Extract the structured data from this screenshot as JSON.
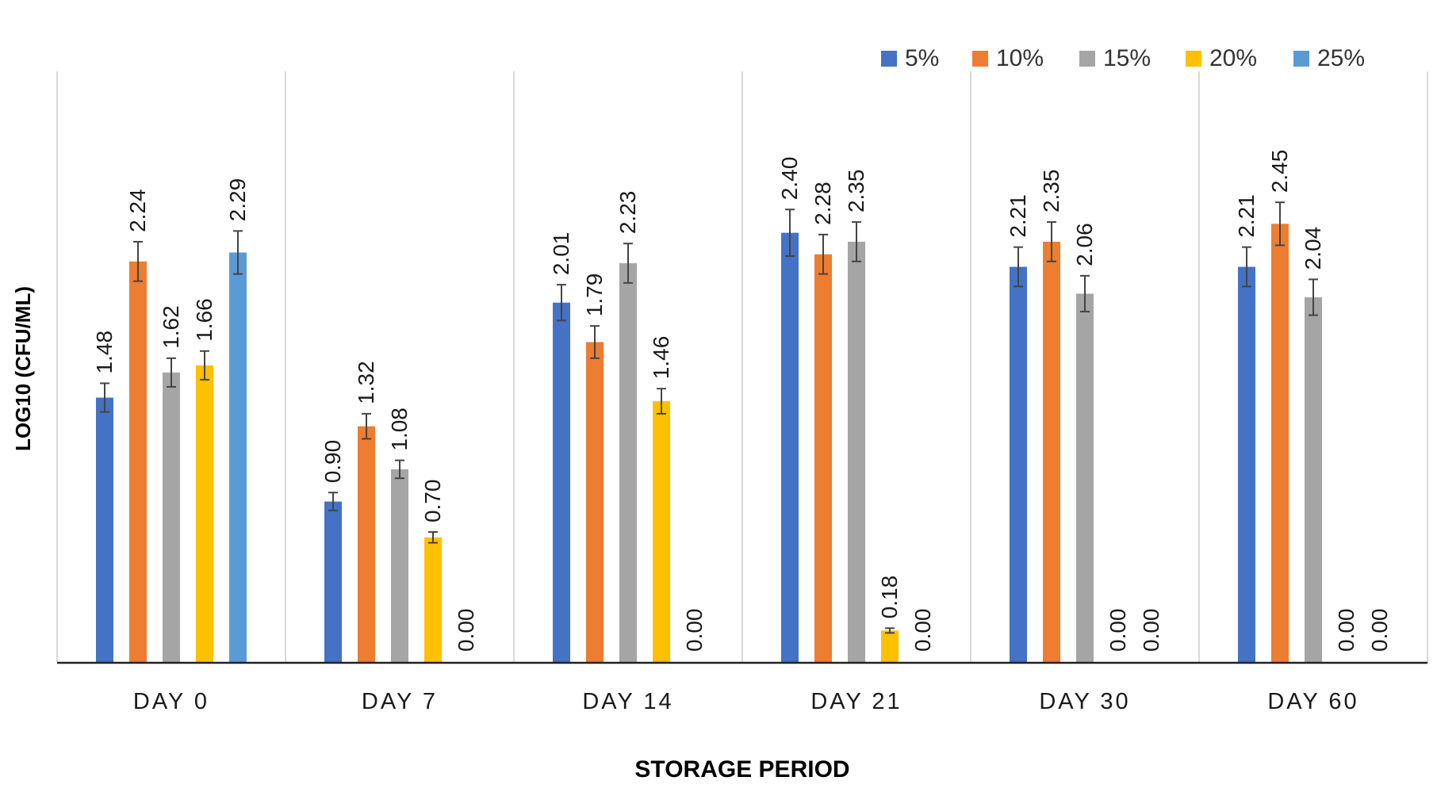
{
  "chart_data": {
    "type": "bar",
    "title": "",
    "xlabel": "STORAGE PERIOD",
    "ylabel": "LOG10 (CFU/ML)",
    "categories": [
      "DAY 0",
      "DAY 7",
      "DAY 14",
      "DAY 21",
      "DAY 30",
      "DAY 60"
    ],
    "series": [
      {
        "name": "5%",
        "color": "#4472C4",
        "values": [
          1.48,
          0.9,
          2.01,
          2.4,
          2.21,
          2.21
        ],
        "errors": [
          0.08,
          0.05,
          0.1,
          0.13,
          0.11,
          0.11
        ]
      },
      {
        "name": "10%",
        "color": "#ED7D31",
        "values": [
          2.24,
          1.32,
          1.79,
          2.28,
          2.35,
          2.45
        ],
        "errors": [
          0.11,
          0.07,
          0.09,
          0.11,
          0.11,
          0.12
        ]
      },
      {
        "name": "15%",
        "color": "#A5A5A5",
        "values": [
          1.62,
          1.08,
          2.23,
          2.35,
          2.06,
          2.04
        ],
        "errors": [
          0.08,
          0.05,
          0.11,
          0.11,
          0.1,
          0.1
        ]
      },
      {
        "name": "20%",
        "color": "#FFC000",
        "values": [
          1.66,
          0.7,
          1.46,
          0.18,
          null,
          null
        ],
        "errors": [
          0.08,
          0.03,
          0.07,
          0.01,
          null,
          null
        ]
      },
      {
        "name": "25%",
        "color": "#5B9BD5",
        "values": [
          2.29,
          0.0,
          0.0,
          0.0,
          0.0,
          0.0
        ],
        "errors": [
          0.12,
          0,
          0,
          0,
          0,
          0
        ]
      }
    ],
    "value_labels": [
      [
        "1.48",
        "0.90",
        "2.01",
        "2.40",
        "2.21",
        "2.21"
      ],
      [
        "2.24",
        "1.32",
        "1.79",
        "2.28",
        "2.35",
        "2.45"
      ],
      [
        "1.62",
        "1.08",
        "2.23",
        "2.35",
        "2.06",
        "2.04"
      ],
      [
        "1.66",
        "0.70",
        "1.46",
        "0.18",
        "0.00",
        "0.00"
      ],
      [
        "2.29",
        "0.00",
        "0.00",
        "0.00",
        "0.00",
        "0.00"
      ]
    ],
    "ylim": [
      0,
      3.0
    ],
    "gridlines": "vertical category separators",
    "legend_position": "top-right"
  }
}
